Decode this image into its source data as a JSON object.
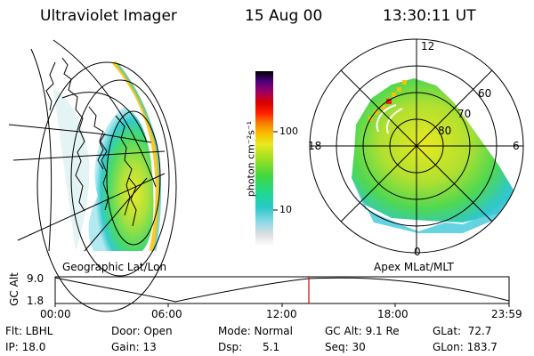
{
  "header": {
    "instrument": "Ultraviolet Imager",
    "date": "15 Aug 00",
    "time": "13:30:11 UT"
  },
  "panels": {
    "geographic_label": "Geographic Lat/Lon",
    "apex_label": "Apex MLat/MLT"
  },
  "colorbar": {
    "unit_label": "photon cm⁻²s⁻¹",
    "ticks": [
      "100",
      "10"
    ],
    "scale": "log",
    "stops": [
      "#ffffff",
      "#e0e0e0",
      "#8ad8e8",
      "#28c8c8",
      "#20d890",
      "#40d840",
      "#a0e020",
      "#e8e820",
      "#f8c000",
      "#f88000",
      "#ff2000",
      "#d80000",
      "#a00060",
      "#500080",
      "#000000"
    ]
  },
  "polar": {
    "mlt_labels": [
      "12",
      "18",
      "6",
      "0"
    ],
    "mlat_labels": [
      "60",
      "70",
      "80"
    ]
  },
  "altitude_plot": {
    "ylabel": "GC Alt",
    "yticks": [
      "9.0",
      "1.8"
    ],
    "xticks": [
      "00:00",
      "06:00",
      "12:00",
      "18:00",
      "23:59"
    ],
    "current_time_marker": "13:30:11",
    "marker_color": "#cc0000"
  },
  "info": {
    "row1": {
      "flt": "Flt: LBHL",
      "door": "Door: Open",
      "mode": "Mode: Normal",
      "gc_alt": "GC Alt: 9.1 Re",
      "glat": "GLat:  72.7"
    },
    "row2": {
      "ip": "IP: 18.0",
      "gain": "Gain: 13",
      "dsp": "Dsp:      5.1",
      "seq": "Seq: 30",
      "glon": "GLon: 183.7"
    }
  }
}
